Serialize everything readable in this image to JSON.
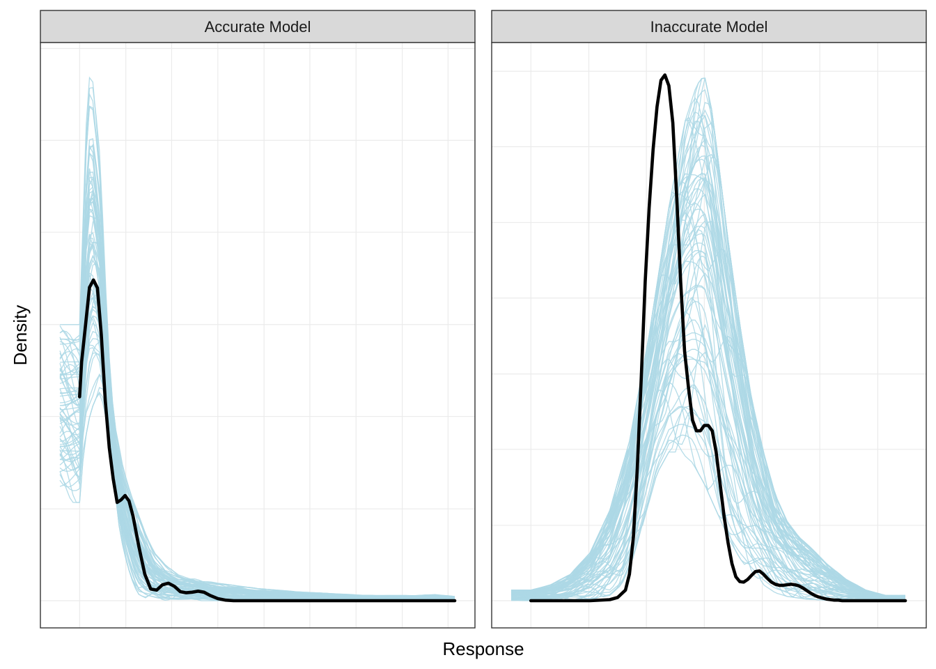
{
  "figure": {
    "xlabel": "Response",
    "ylabel": "Density",
    "colors": {
      "observed": "#000000",
      "replicates": "#add8e6",
      "strip_fill": "#d9d9d9",
      "grid": "#ebebeb",
      "panel_border": "#333333"
    }
  },
  "chart_data": [
    {
      "type": "line",
      "panel": "Accurate Model",
      "title": "Accurate Model",
      "grid": true,
      "tick_labels_shown": false,
      "xlim": [
        0,
        1
      ],
      "ylim": [
        0,
        1
      ],
      "x_gridlines": [
        0.05,
        0.167,
        0.283,
        0.4,
        0.517,
        0.633,
        0.75,
        0.867,
        0.983
      ],
      "y_gridlines": [
        0,
        0.173,
        0.347,
        0.52,
        0.694,
        0.867,
        1.04
      ],
      "series": [
        {
          "name": "",
          "role": "observed",
          "x": [
            0.05,
            0.055,
            0.065,
            0.075,
            0.085,
            0.095,
            0.105,
            0.115,
            0.125,
            0.135,
            0.145,
            0.155,
            0.165,
            0.175,
            0.185,
            0.2,
            0.215,
            0.23,
            0.245,
            0.26,
            0.275,
            0.29,
            0.305,
            0.32,
            0.335,
            0.35,
            0.365,
            0.38,
            0.4,
            0.42,
            0.44,
            0.46,
            0.48,
            0.5,
            0.55,
            0.6,
            0.7,
            0.8,
            0.9,
            1.0
          ],
          "y": [
            0.384,
            0.45,
            0.52,
            0.59,
            0.604,
            0.589,
            0.5,
            0.376,
            0.288,
            0.23,
            0.185,
            0.19,
            0.198,
            0.188,
            0.16,
            0.102,
            0.05,
            0.022,
            0.02,
            0.03,
            0.033,
            0.027,
            0.017,
            0.015,
            0.016,
            0.018,
            0.016,
            0.01,
            0.004,
            0.001,
            0,
            0,
            0,
            0,
            0,
            0,
            0,
            0,
            0,
            0
          ]
        },
        {
          "name": "",
          "role": "replicate-max",
          "x": [
            0.05,
            0.06,
            0.07,
            0.08,
            0.09,
            0.1,
            0.11,
            0.12,
            0.13,
            0.14,
            0.15,
            0.16,
            0.18,
            0.2,
            0.22,
            0.24,
            0.27,
            0.3,
            0.35,
            0.4,
            0.5,
            0.6,
            0.7,
            0.8,
            0.9,
            0.95,
            1.0
          ],
          "y": [
            0.52,
            0.75,
            0.97,
            1.0,
            0.93,
            0.85,
            0.7,
            0.52,
            0.4,
            0.33,
            0.29,
            0.25,
            0.2,
            0.16,
            0.12,
            0.09,
            0.065,
            0.05,
            0.04,
            0.033,
            0.023,
            0.017,
            0.013,
            0.01,
            0.01,
            0.012,
            0.008
          ]
        },
        {
          "name": "",
          "role": "replicate-min",
          "x": [
            0.05,
            0.06,
            0.07,
            0.08,
            0.09,
            0.1,
            0.11,
            0.12,
            0.13,
            0.14,
            0.15,
            0.16,
            0.17,
            0.18,
            0.19,
            0.2,
            0.22,
            0.25,
            0.3,
            0.4,
            0.6,
            0.8,
            1.0
          ],
          "y": [
            0.185,
            0.28,
            0.33,
            0.36,
            0.38,
            0.39,
            0.37,
            0.33,
            0.26,
            0.2,
            0.14,
            0.1,
            0.07,
            0.045,
            0.025,
            0.012,
            0.004,
            0,
            0,
            0,
            0,
            0,
            0
          ]
        }
      ]
    },
    {
      "type": "line",
      "panel": "Inaccurate Model",
      "title": "Inaccurate Model",
      "grid": true,
      "tick_labels_shown": false,
      "xlim": [
        0,
        1
      ],
      "ylim": [
        0,
        1
      ],
      "x_gridlines": [
        0.05,
        0.197,
        0.343,
        0.49,
        0.637,
        0.783,
        0.93
      ],
      "y_gridlines": [
        0,
        0.142,
        0.285,
        0.427,
        0.57,
        0.712,
        0.855,
        0.997
      ],
      "series": [
        {
          "name": "",
          "role": "observed",
          "x": [
            0.05,
            0.1,
            0.15,
            0.2,
            0.25,
            0.27,
            0.29,
            0.3,
            0.31,
            0.32,
            0.33,
            0.34,
            0.35,
            0.36,
            0.37,
            0.38,
            0.39,
            0.4,
            0.41,
            0.42,
            0.43,
            0.44,
            0.45,
            0.46,
            0.47,
            0.48,
            0.49,
            0.5,
            0.51,
            0.52,
            0.53,
            0.54,
            0.55,
            0.56,
            0.57,
            0.58,
            0.59,
            0.6,
            0.61,
            0.62,
            0.63,
            0.64,
            0.65,
            0.66,
            0.67,
            0.68,
            0.69,
            0.7,
            0.71,
            0.72,
            0.73,
            0.74,
            0.75,
            0.76,
            0.77,
            0.78,
            0.79,
            0.8,
            0.81,
            0.82,
            0.83,
            0.84,
            0.85,
            0.86,
            0.87,
            0.88,
            0.89,
            0.9,
            0.95,
            1.0
          ],
          "y": [
            0,
            0,
            0,
            0.0,
            0.002,
            0.006,
            0.02,
            0.05,
            0.12,
            0.25,
            0.42,
            0.6,
            0.74,
            0.85,
            0.93,
            0.98,
            0.99,
            0.97,
            0.9,
            0.76,
            0.6,
            0.47,
            0.4,
            0.34,
            0.32,
            0.32,
            0.33,
            0.33,
            0.32,
            0.28,
            0.22,
            0.16,
            0.11,
            0.07,
            0.045,
            0.036,
            0.035,
            0.04,
            0.048,
            0.055,
            0.056,
            0.05,
            0.042,
            0.035,
            0.031,
            0.029,
            0.029,
            0.03,
            0.031,
            0.03,
            0.028,
            0.024,
            0.019,
            0.014,
            0.01,
            0.007,
            0.005,
            0.003,
            0.002,
            0.001,
            0.001,
            0.0,
            0,
            0,
            0,
            0,
            0,
            0,
            0,
            0
          ]
        },
        {
          "name": "",
          "role": "replicate-max",
          "x": [
            0.05,
            0.1,
            0.15,
            0.2,
            0.25,
            0.3,
            0.35,
            0.4,
            0.44,
            0.47,
            0.49,
            0.51,
            0.53,
            0.55,
            0.58,
            0.61,
            0.64,
            0.67,
            0.7,
            0.73,
            0.76,
            0.8,
            0.85,
            0.9,
            0.95,
            1.0
          ],
          "y": [
            0.02,
            0.03,
            0.05,
            0.09,
            0.17,
            0.3,
            0.5,
            0.74,
            0.9,
            0.97,
            0.99,
            0.92,
            0.8,
            0.68,
            0.52,
            0.38,
            0.28,
            0.2,
            0.15,
            0.12,
            0.1,
            0.07,
            0.04,
            0.02,
            0.01,
            0.01
          ]
        },
        {
          "name": "",
          "role": "replicate-min",
          "x": [
            0.05,
            0.1,
            0.15,
            0.2,
            0.25,
            0.28,
            0.31,
            0.34,
            0.37,
            0.4,
            0.43,
            0.46,
            0.49,
            0.52,
            0.55,
            0.58,
            0.61,
            0.64,
            0.67,
            0.7,
            0.75,
            0.8,
            0.9,
            1.0
          ],
          "y": [
            0,
            0,
            0,
            0.002,
            0.01,
            0.03,
            0.08,
            0.16,
            0.24,
            0.28,
            0.28,
            0.26,
            0.22,
            0.17,
            0.12,
            0.08,
            0.05,
            0.03,
            0.015,
            0.008,
            0.003,
            0.001,
            0,
            0
          ]
        }
      ]
    }
  ]
}
